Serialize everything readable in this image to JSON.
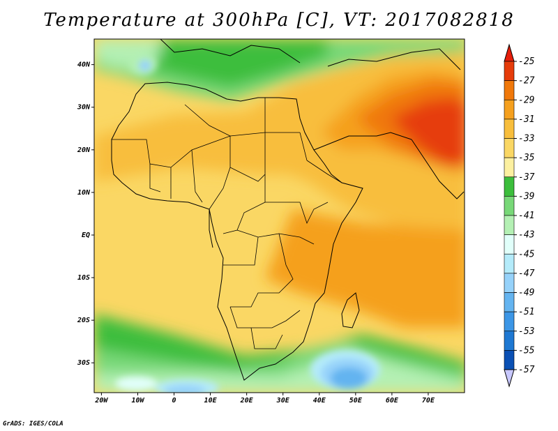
{
  "title": "Temperature at 300hPa [C], VT: 2017082818",
  "credit": "GrADS: IGES/COLA",
  "map": {
    "lon_range": [
      -22,
      80
    ],
    "lat_range": [
      -37,
      46
    ],
    "lat_ticks": [
      {
        "value": 40,
        "label": "40N"
      },
      {
        "value": 30,
        "label": "30N"
      },
      {
        "value": 20,
        "label": "20N"
      },
      {
        "value": 10,
        "label": "10N"
      },
      {
        "value": 0,
        "label": "EQ"
      },
      {
        "value": -10,
        "label": "10S"
      },
      {
        "value": -20,
        "label": "20S"
      },
      {
        "value": -30,
        "label": "30S"
      }
    ],
    "lon_ticks": [
      {
        "value": -20,
        "label": "20W"
      },
      {
        "value": -10,
        "label": "10W"
      },
      {
        "value": 0,
        "label": "0"
      },
      {
        "value": 10,
        "label": "10E"
      },
      {
        "value": 20,
        "label": "20E"
      },
      {
        "value": 30,
        "label": "30E"
      },
      {
        "value": 40,
        "label": "40E"
      },
      {
        "value": 50,
        "label": "50E"
      },
      {
        "value": 60,
        "label": "60E"
      },
      {
        "value": 70,
        "label": "70E"
      }
    ]
  },
  "colorbar": {
    "levels": [
      "-25",
      "-27",
      "-29",
      "-31",
      "-33",
      "-35",
      "-37",
      "-39",
      "-41",
      "-43",
      "-45",
      "-47",
      "-49",
      "-51",
      "-53",
      "-55",
      "-57"
    ],
    "colors": [
      "#e63c0a",
      "#f0780a",
      "#f5a01e",
      "#f8be3c",
      "#fad764",
      "#fcf0a0",
      "#3cbe3c",
      "#78d878",
      "#b4f0b4",
      "#e1fffa",
      "#b4ebfa",
      "#96d2fa",
      "#64b4f0",
      "#3c96e6",
      "#1e78d2",
      "#0a50b4",
      "#142878"
    ],
    "top_color": "#e61e0a",
    "bottom_color": "#c8c8ff"
  }
}
